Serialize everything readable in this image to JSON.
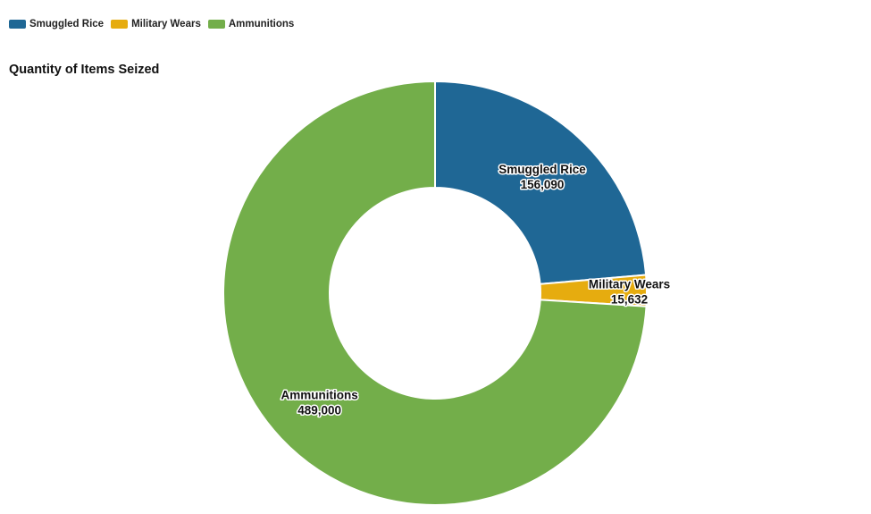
{
  "chart_data": {
    "type": "pie",
    "variant": "donut",
    "title": "Quantity of Items Seized",
    "legend_position": "top-left",
    "slices": [
      {
        "label": "Smuggled Rice",
        "value": 156090,
        "display": "156,090",
        "color": "#1f6795"
      },
      {
        "label": "Military Wears",
        "value": 15632,
        "display": "15,632",
        "color": "#e6ac0f"
      },
      {
        "label": "Ammunitions",
        "value": 489000,
        "display": "489,000",
        "color": "#73ae4a"
      }
    ]
  }
}
